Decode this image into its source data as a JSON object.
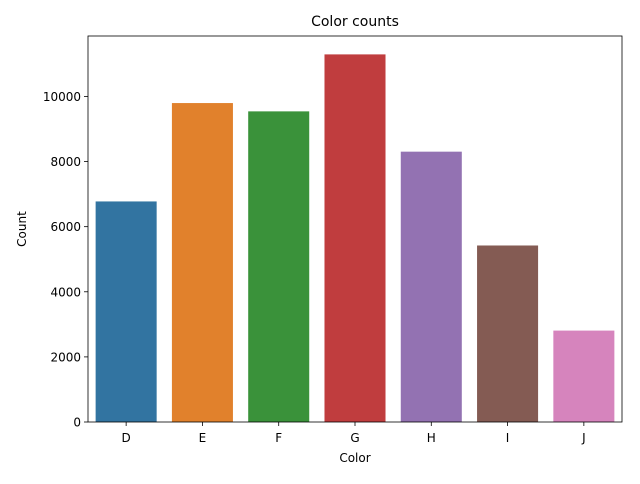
{
  "chart_data": {
    "type": "bar",
    "title": "Color counts",
    "xlabel": "Color",
    "ylabel": "Count",
    "categories": [
      "D",
      "E",
      "F",
      "G",
      "H",
      "I",
      "J"
    ],
    "values": [
      6775,
      9797,
      9542,
      11292,
      8304,
      5422,
      2808
    ],
    "colors": [
      "#3274a1",
      "#e1812c",
      "#3a923a",
      "#c03d3e",
      "#9372b2",
      "#845b53",
      "#d684bd"
    ],
    "ylim": [
      0,
      11857
    ],
    "yticks": [
      0,
      2000,
      4000,
      6000,
      8000,
      10000
    ],
    "ytick_labels": [
      "0",
      "2000",
      "4000",
      "6000",
      "8000",
      "10000"
    ],
    "grid": false,
    "legend": false
  }
}
